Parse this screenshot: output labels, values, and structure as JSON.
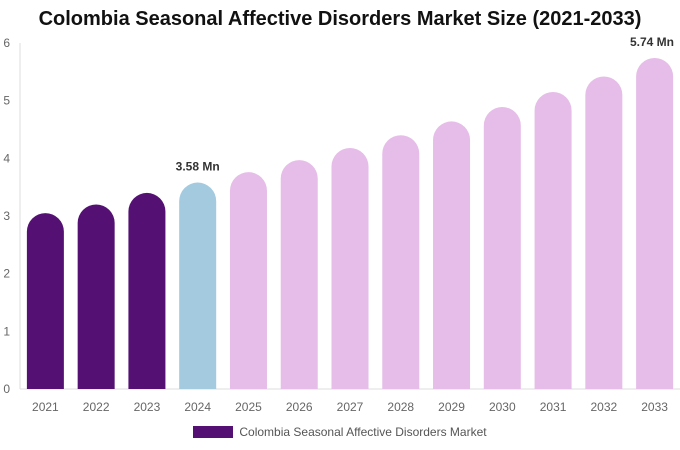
{
  "chart_data": {
    "type": "bar",
    "title": "Colombia Seasonal Affective Disorders Market Size (2021-2033)",
    "categories": [
      "2021",
      "2022",
      "2023",
      "2024",
      "2025",
      "2026",
      "2027",
      "2028",
      "2029",
      "2030",
      "2031",
      "2032",
      "2033"
    ],
    "series": [
      {
        "name": "Colombia Seasonal Affective Disorders Market",
        "values": [
          3.05,
          3.2,
          3.4,
          3.58,
          3.76,
          3.97,
          4.18,
          4.4,
          4.64,
          4.89,
          5.15,
          5.42,
          5.74
        ]
      }
    ],
    "data_labels": [
      {
        "category": "2024",
        "text": "3.58 Mn"
      },
      {
        "category": "2033",
        "text": "5.74 Mn"
      }
    ],
    "ylim": [
      0,
      6
    ],
    "yticks": [
      0,
      1,
      2,
      3,
      4,
      5,
      6
    ],
    "grid": false,
    "legend_position": "bottom",
    "colors": {
      "historical": "#541173",
      "current": "#a3cadf",
      "forecast": "#e6bce8"
    }
  }
}
